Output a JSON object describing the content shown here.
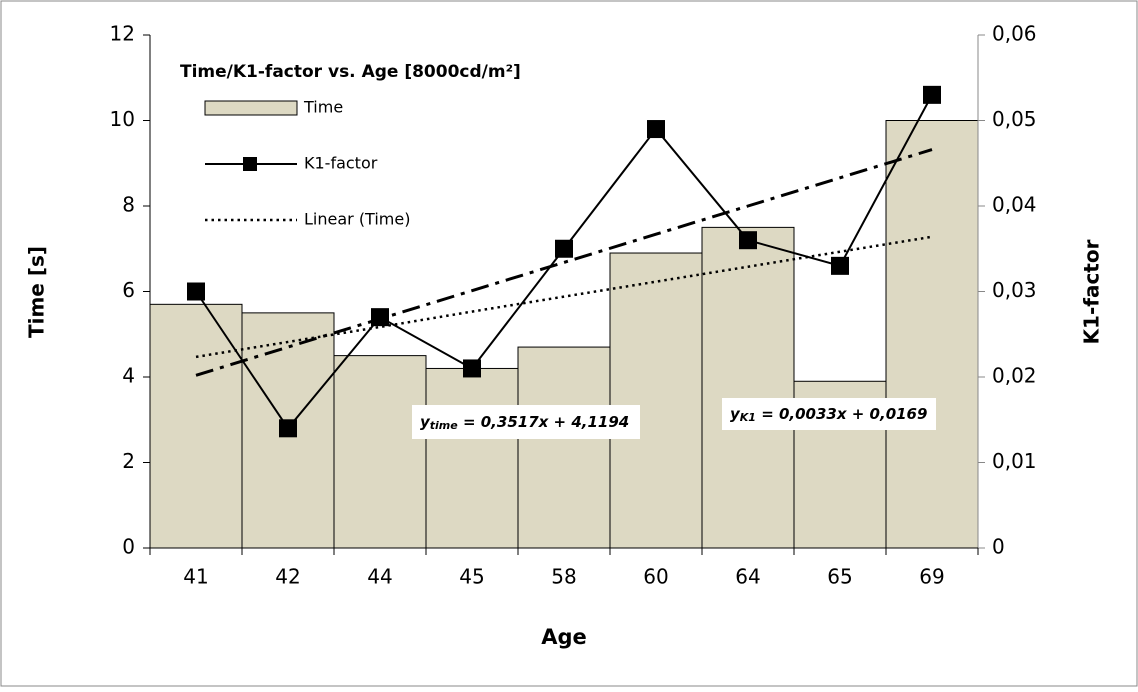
{
  "chart_data": {
    "type": "combo",
    "title": "Time/K1-factor vs. Age [8000cd/m²]",
    "x_label": "Age",
    "y_label": "Time [s]",
    "y2_label": "K1-factor",
    "categories": [
      "41",
      "42",
      "44",
      "45",
      "58",
      "60",
      "64",
      "65",
      "69"
    ],
    "series": [
      {
        "name": "Time",
        "type": "bar",
        "color": "#ddd9c3",
        "values": [
          5.7,
          5.5,
          4.5,
          4.2,
          4.7,
          6.9,
          7.5,
          3.9,
          10
        ]
      },
      {
        "name": "K1-factor",
        "type": "line",
        "axis": "y2",
        "color": "#000000",
        "values": [
          0.03,
          0.014,
          0.027,
          0.021,
          0.035,
          0.049,
          0.036,
          0.033,
          0.053
        ]
      },
      {
        "name": "Linear (Time)",
        "type": "trend",
        "style": "dotted",
        "color": "#000000",
        "values": [
          4.47,
          4.82,
          5.17,
          5.53,
          5.88,
          6.23,
          6.58,
          6.93,
          7.28
        ]
      },
      {
        "type": "trend",
        "style": "dash-dot",
        "axis": "y2",
        "color": "#000000",
        "values": [
          0.0202,
          0.0235,
          0.0268,
          0.0301,
          0.0334,
          0.0367,
          0.04,
          0.0433,
          0.0466
        ]
      }
    ],
    "ylim": [
      0,
      12
    ],
    "yticks": [
      0,
      2,
      4,
      6,
      8,
      10,
      12
    ],
    "y2lim": [
      0,
      0.06
    ],
    "y2ticks": [
      0,
      {
        "value": 0.01,
        "label": "0,01"
      },
      {
        "value": 0.02,
        "label": "0,02"
      },
      {
        "value": 0.03,
        "label": "0,03"
      },
      {
        "value": 0.04,
        "label": "0,04"
      },
      {
        "value": 0.05,
        "label": "0,05"
      },
      {
        "value": 0.06,
        "label": "0,06"
      }
    ],
    "annotations": [
      {
        "var": "y",
        "sub": "time",
        "text": " = 0,3517x + 4,1194"
      },
      {
        "var": "y",
        "sub": "K1",
        "text": " = 0,0033x + 0,0169"
      }
    ]
  }
}
